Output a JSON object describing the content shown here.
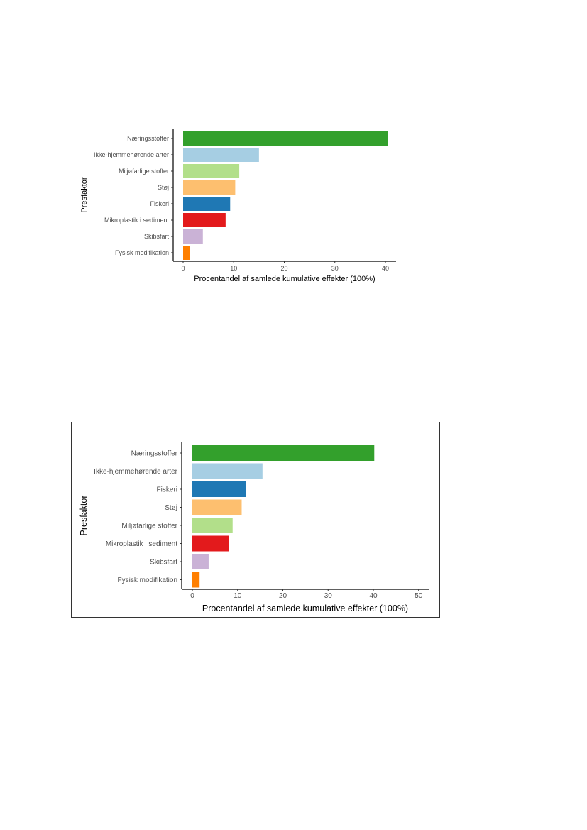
{
  "chart_data": [
    {
      "type": "bar",
      "orientation": "horizontal",
      "categories": [
        "Næringsstoffer",
        "Ikke-hjemmehørende arter",
        "Miljøfarlige stoffer",
        "Støj",
        "Fiskeri",
        "Mikroplastik i sediment",
        "Skibsfart",
        "Fysisk modifikation"
      ],
      "values": [
        40.5,
        15.0,
        11.1,
        10.3,
        9.3,
        8.4,
        3.9,
        1.4
      ],
      "colors": [
        "#33a02c",
        "#a6cee3",
        "#b2df8a",
        "#fdbf6f",
        "#1f78b4",
        "#e31a1c",
        "#cab2d6",
        "#ff7f00"
      ],
      "xlabel": "Procentandel af samlede kumulative effekter (100%)",
      "ylabel": "Presfaktor",
      "xticks": [
        0,
        10,
        20,
        30,
        40
      ],
      "xlim": [
        -1,
        42
      ],
      "grid": false,
      "framed": false
    },
    {
      "type": "bar",
      "orientation": "horizontal",
      "categories": [
        "Næringsstoffer",
        "Ikke-hjemmehørende arter",
        "Fiskeri",
        "Støj",
        "Miljøfarlige stoffer",
        "Mikroplastik i sediment",
        "Skibsfart",
        "Fysisk modifikation"
      ],
      "values": [
        40.2,
        15.5,
        11.9,
        10.9,
        8.9,
        8.1,
        3.6,
        1.6
      ],
      "colors": [
        "#33a02c",
        "#a6cee3",
        "#1f78b4",
        "#fdbf6f",
        "#b2df8a",
        "#e31a1c",
        "#cab2d6",
        "#ff7f00"
      ],
      "xlabel": "Procentandel af samlede kumulative effekter (100%)",
      "ylabel": "Presfaktor",
      "xticks": [
        0,
        10,
        20,
        30,
        40,
        50
      ],
      "xlim": [
        -2.2,
        52
      ],
      "grid": false,
      "framed": true
    }
  ]
}
